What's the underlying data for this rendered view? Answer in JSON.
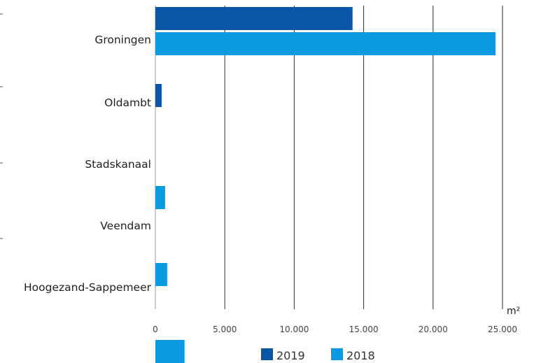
{
  "chart_data": {
    "type": "bar",
    "orientation": "horizontal",
    "categories": [
      "Groningen",
      "Oldambt",
      "Stadskanaal",
      "Veendam",
      "Hoogezand-Sappemeer"
    ],
    "series": [
      {
        "name": "2019",
        "color": "#0b55a7",
        "values": [
          14200,
          450,
          0,
          0,
          0
        ]
      },
      {
        "name": "2018",
        "color": "#0a9ae1",
        "values": [
          24500,
          0,
          700,
          850,
          2100
        ]
      }
    ],
    "xlim": [
      0,
      25000
    ],
    "xticks": [
      {
        "value": 0,
        "label": "0"
      },
      {
        "value": 5000,
        "label": "5.000"
      },
      {
        "value": 10000,
        "label": "10.000"
      },
      {
        "value": 15000,
        "label": "15.000"
      },
      {
        "value": 20000,
        "label": "20.000"
      },
      {
        "value": 25000,
        "label": "25.000"
      }
    ],
    "xlabel": "m²",
    "grid": true,
    "legend": "bottom"
  }
}
